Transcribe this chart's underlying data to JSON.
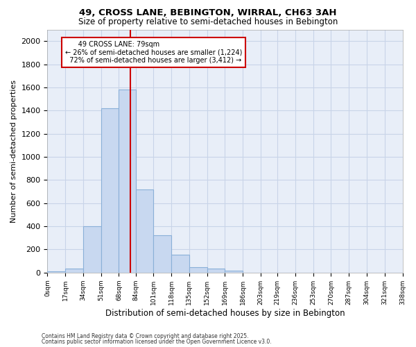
{
  "title1": "49, CROSS LANE, BEBINGTON, WIRRAL, CH63 3AH",
  "title2": "Size of property relative to semi-detached houses in Bebington",
  "xlabel": "Distribution of semi-detached houses by size in Bebington",
  "ylabel": "Number of semi-detached properties",
  "bin_edges": [
    0,
    17,
    34,
    51,
    68,
    84,
    101,
    118,
    135,
    152,
    169,
    186,
    203,
    219,
    236,
    253,
    270,
    287,
    304,
    321,
    338
  ],
  "bar_heights": [
    10,
    35,
    400,
    1420,
    1580,
    720,
    325,
    155,
    50,
    35,
    15,
    0,
    0,
    0,
    0,
    0,
    0,
    0,
    0,
    0
  ],
  "bar_color": "#c8d8f0",
  "bar_edge_color": "#8ab0d8",
  "grid_color": "#c8d4e8",
  "plot_bg_color": "#e8eef8",
  "fig_bg_color": "#ffffff",
  "property_size": 79,
  "property_label": "49 CROSS LANE: 79sqm",
  "pct_smaller": 26,
  "n_smaller": 1224,
  "pct_larger": 72,
  "n_larger": 3412,
  "vline_color": "#cc0000",
  "annotation_box_edge_color": "#cc0000",
  "annotation_box_face_color": "#ffffff",
  "ylim": [
    0,
    2100
  ],
  "yticks": [
    0,
    200,
    400,
    600,
    800,
    1000,
    1200,
    1400,
    1600,
    1800,
    2000
  ],
  "tick_labels": [
    "0sqm",
    "17sqm",
    "34sqm",
    "51sqm",
    "68sqm",
    "84sqm",
    "101sqm",
    "118sqm",
    "135sqm",
    "152sqm",
    "169sqm",
    "186sqm",
    "203sqm",
    "219sqm",
    "236sqm",
    "253sqm",
    "270sqm",
    "287sqm",
    "304sqm",
    "321sqm",
    "338sqm"
  ],
  "footnote1": "Contains HM Land Registry data © Crown copyright and database right 2025.",
  "footnote2": "Contains public sector information licensed under the Open Government Licence v3.0."
}
